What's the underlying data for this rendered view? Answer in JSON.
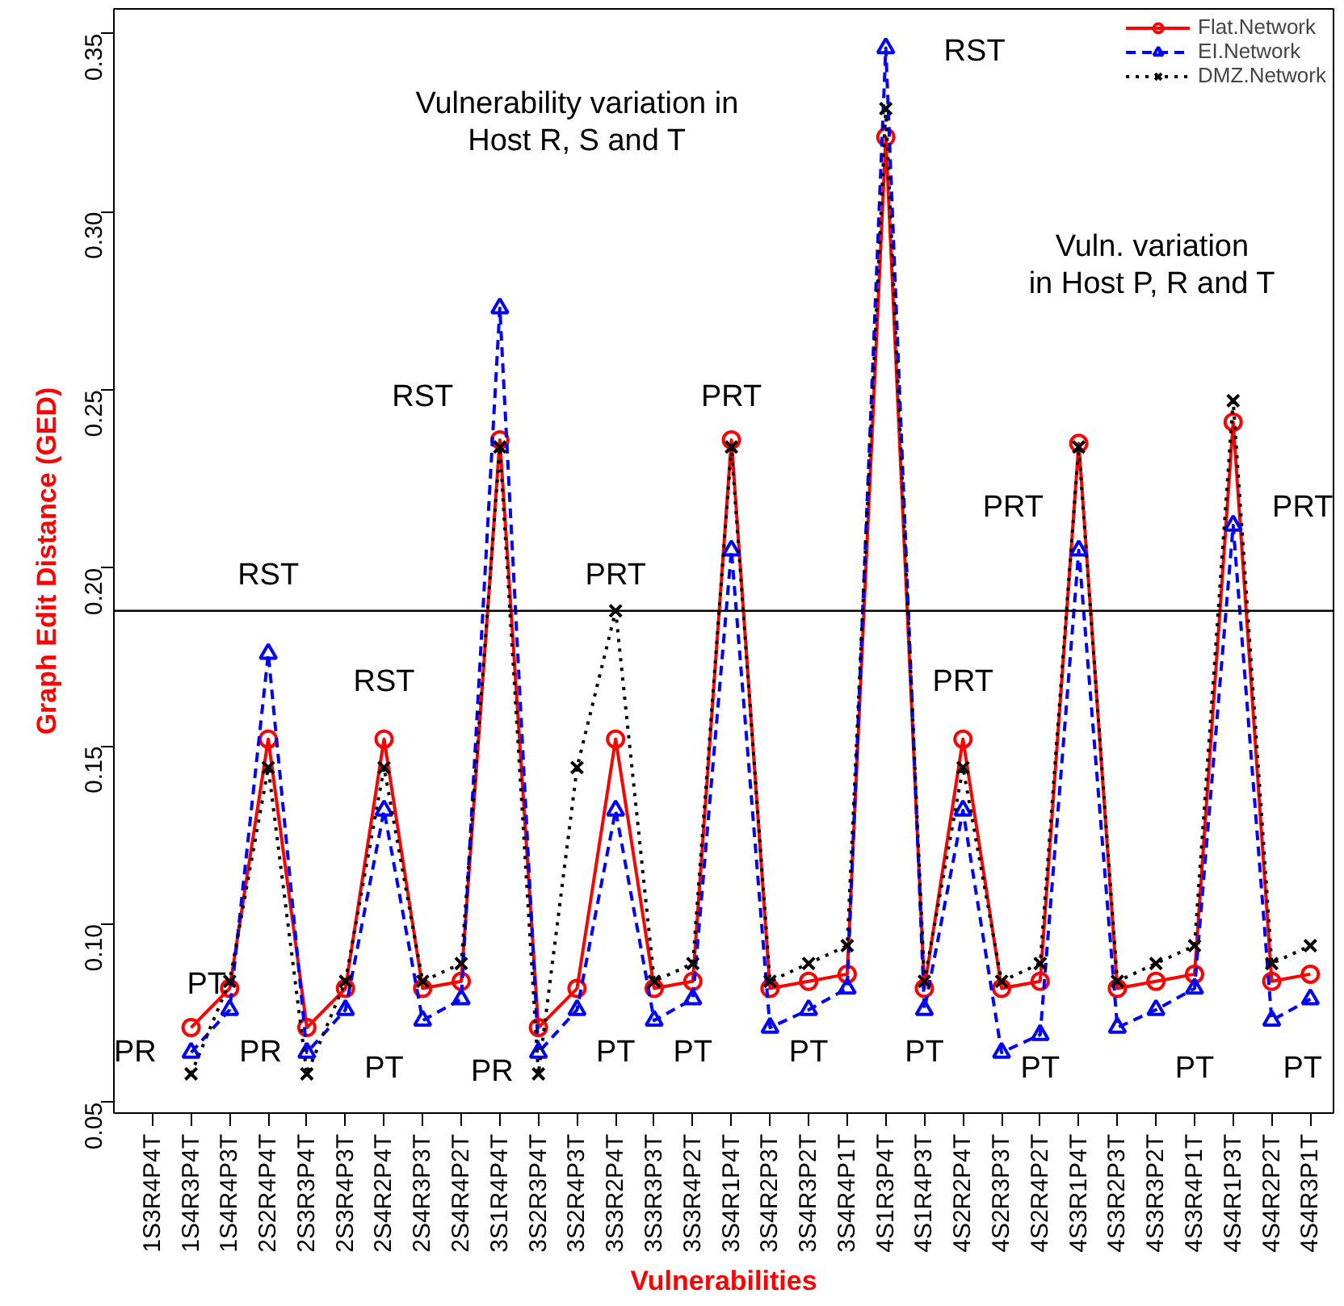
{
  "chart_data": {
    "type": "line",
    "xlabel": "Vulnerabilities",
    "ylabel": "Graph Edit Distance (GED)",
    "categories": [
      "1S3R4P4T",
      "1S4R3P4T",
      "1S4R4P3T",
      "2S2R4P4T",
      "2S3R3P4T",
      "2S3R4P3T",
      "2S4R2P4T",
      "2S4R3P3T",
      "2S4R4P2T",
      "3S1R4P4T",
      "3S2R3P4T",
      "3S2R4P3T",
      "3S3R2P4T",
      "3S3R3P3T",
      "3S3R4P2T",
      "3S4R1P4T",
      "3S4R2P3T",
      "3S4R3P2T",
      "3S4R4P1T",
      "4S1R3P4T",
      "4S1R4P3T",
      "4S2R2P4T",
      "4S2R3P3T",
      "4S2R4P2T",
      "4S3R1P4T",
      "4S3R2P3T",
      "4S3R3P2T",
      "4S3R4P1T",
      "4S4R1P3T",
      "4S4R2P2T",
      "4S4R3P1T"
    ],
    "series": [
      {
        "name": "Flat.Network",
        "color": "#ff0000",
        "marker": "circle",
        "line_style": "solid",
        "values": [
          null,
          0.071,
          0.082,
          0.152,
          0.071,
          0.082,
          0.152,
          0.082,
          0.084,
          0.236,
          0.071,
          0.082,
          0.152,
          0.082,
          0.084,
          0.236,
          0.082,
          0.084,
          0.086,
          0.321,
          0.082,
          0.152,
          0.082,
          0.084,
          0.235,
          0.082,
          0.084,
          0.086,
          0.241,
          0.084,
          0.086
        ]
      },
      {
        "name": "EI.Network",
        "color": "#0000ff",
        "marker": "triangle",
        "line_style": "dashed",
        "values": [
          null,
          0.064,
          0.076,
          0.176,
          0.064,
          0.076,
          0.132,
          0.073,
          0.079,
          0.273,
          0.064,
          0.076,
          0.132,
          0.073,
          0.079,
          0.205,
          0.071,
          0.076,
          0.082,
          0.346,
          0.076,
          0.132,
          0.064,
          0.069,
          0.205,
          0.071,
          0.076,
          0.082,
          0.212,
          0.073,
          0.079
        ]
      },
      {
        "name": "DMZ.Network",
        "color": "#000000",
        "marker": "cross",
        "line_style": "dotted",
        "values": [
          null,
          0.058,
          0.084,
          0.144,
          0.058,
          0.084,
          0.144,
          0.084,
          0.089,
          0.234,
          0.058,
          0.144,
          0.188,
          0.084,
          0.089,
          0.234,
          0.084,
          0.089,
          0.094,
          0.329,
          0.084,
          0.144,
          0.084,
          0.089,
          0.234,
          0.084,
          0.089,
          0.094,
          0.247,
          0.089,
          0.094
        ]
      }
    ],
    "ylim": [
      0.047,
      0.357
    ],
    "yticks": [
      0.05,
      {
        "value": 0.1,
        "label": "0.10"
      },
      0.15,
      {
        "value": 0.2,
        "label": "0.20"
      },
      0.25,
      {
        "value": 0.3,
        "label": "0.30"
      },
      0.35
    ],
    "ref_lines": [
      {
        "axis": "y",
        "value": 0.188,
        "color": "#000000"
      }
    ],
    "annotations": [
      "PR",
      "PT",
      "RST",
      "PR",
      "RST",
      "PT",
      "RST",
      "PR",
      "PRT",
      "PT",
      "PT",
      "PRT",
      "PT",
      "PT",
      "PRT",
      "PT",
      "PT",
      "PT",
      "RST",
      "PRT",
      "PRT",
      "Vulnerability variation in\nHost R, S and T",
      "Vuln. variation\nin Host P, R and T"
    ],
    "legend": "top right",
    "grid": false
  }
}
